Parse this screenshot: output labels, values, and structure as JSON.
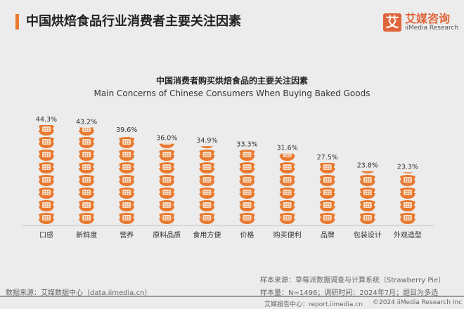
{
  "header": {
    "title": "中国烘焙食品行业消费者主要关注因素"
  },
  "logo": {
    "mark": "艾",
    "name_cn": "艾媒咨询",
    "name_en": "iiMedia Research"
  },
  "chart_data": {
    "type": "bar",
    "style": "pictograph",
    "title": "中国消费者购买烘焙食品的主要关注因素",
    "subtitle": "Main Concerns of Chinese Consumers When Buying Baked Goods",
    "categories": [
      "口感",
      "新鲜度",
      "营养",
      "原料品质",
      "食用方便",
      "价格",
      "购买便利",
      "品牌",
      "包装设计",
      "外观造型"
    ],
    "values": [
      44.3,
      43.2,
      39.6,
      36.0,
      34.9,
      33.3,
      31.6,
      27.5,
      23.8,
      23.3
    ],
    "data_labels": [
      "44.3%",
      "43.2%",
      "39.6%",
      "36.0%",
      "34.9%",
      "33.3%",
      "31.6%",
      "27.5%",
      "23.8%",
      "23.3%"
    ],
    "unit": "%",
    "ylim": [
      0,
      44.3
    ],
    "grid": false,
    "color": "#e8792f"
  },
  "footer": {
    "source_left": "数据来源：艾媒数据中心（data.iimedia.cn）",
    "sample_source": "样本来源：草莓派数据调查与计算系统（Strawberry Pie）",
    "sample_size": "样本量：N=1496；调研时间：2024年7月；题目为多选",
    "report_center": "艾媒报告中心：report.iimedia.cn",
    "copyright": "©2024 iiMedia Research  Inc"
  }
}
